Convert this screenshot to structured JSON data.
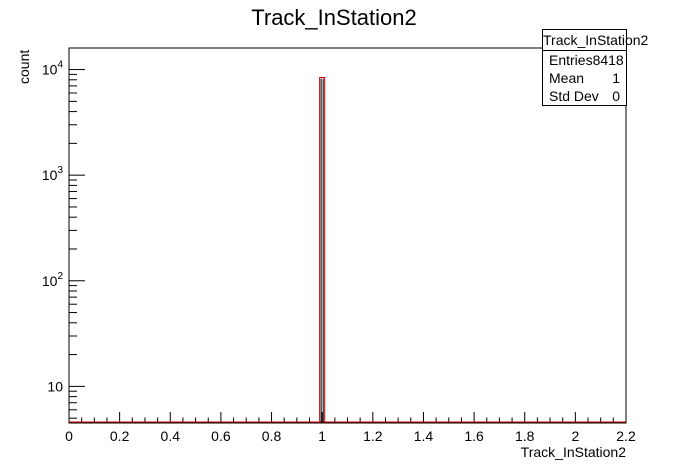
{
  "chart_data": {
    "type": "bar",
    "title": "Track_InStation2",
    "xlabel": "Track_InStation2",
    "ylabel": "count",
    "yscale": "log",
    "xlim": [
      0,
      2.2
    ],
    "ylim": [
      4.5,
      16000
    ],
    "x_ticks": [
      "0",
      "0.2",
      "0.4",
      "0.6",
      "0.8",
      "1",
      "1.2",
      "1.4",
      "1.6",
      "1.8",
      "2",
      "2.2"
    ],
    "y_ticks": [
      {
        "base": "10",
        "exp": ""
      },
      {
        "base": "10",
        "exp": "2"
      },
      {
        "base": "10",
        "exp": "3"
      },
      {
        "base": "10",
        "exp": "4"
      }
    ],
    "bins": [
      {
        "x_low": 0.99,
        "x_high": 1.01,
        "value": 8418
      }
    ],
    "line_color": "#cc0000",
    "frame_color": "#000000"
  },
  "stats": {
    "name": "Track_InStation2",
    "rows": [
      {
        "label": "Entries",
        "value": "8418"
      },
      {
        "label": "Mean",
        "value": "1"
      },
      {
        "label": "Std Dev",
        "value": "0"
      }
    ]
  }
}
